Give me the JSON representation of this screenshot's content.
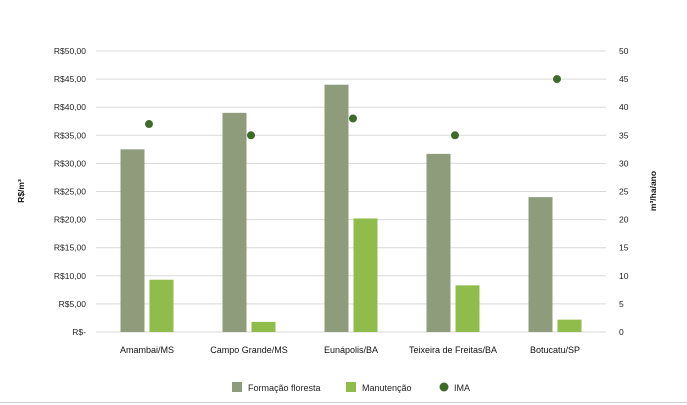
{
  "chart_data": {
    "type": "bar",
    "categories": [
      "Amambai/MS",
      "Campo Grande/MS",
      "Eunápolis/BA",
      "Teixeira de Freitas/BA",
      "Botucatu/SP"
    ],
    "series": [
      {
        "name": "Formação floresta",
        "type": "bar",
        "axis": "left",
        "color": "#8f9c7c",
        "values": [
          32.5,
          39.0,
          44.0,
          31.7,
          24.0
        ]
      },
      {
        "name": "Manutenção",
        "type": "bar",
        "axis": "left",
        "color": "#8fbc4a",
        "values": [
          9.3,
          1.8,
          20.2,
          8.3,
          2.2
        ]
      },
      {
        "name": "IMA",
        "type": "scatter",
        "axis": "right",
        "color": "#3f6b2a",
        "values": [
          37,
          35,
          38,
          35,
          45
        ]
      }
    ],
    "ylabel": "R$/m³",
    "y2label": "m³/ha/ano",
    "ylim": [
      0,
      50
    ],
    "y2lim": [
      0,
      50
    ],
    "yticks": [
      "R$-",
      "R$5,00",
      "R$10,00",
      "R$15,00",
      "R$20,00",
      "R$25,00",
      "R$30,00",
      "R$35,00",
      "R$40,00",
      "R$45,00",
      "R$50,00"
    ],
    "y2ticks": [
      "0",
      "5",
      "10",
      "15",
      "20",
      "25",
      "30",
      "35",
      "40",
      "45",
      "50"
    ],
    "grid": true,
    "legend": "bottom"
  }
}
